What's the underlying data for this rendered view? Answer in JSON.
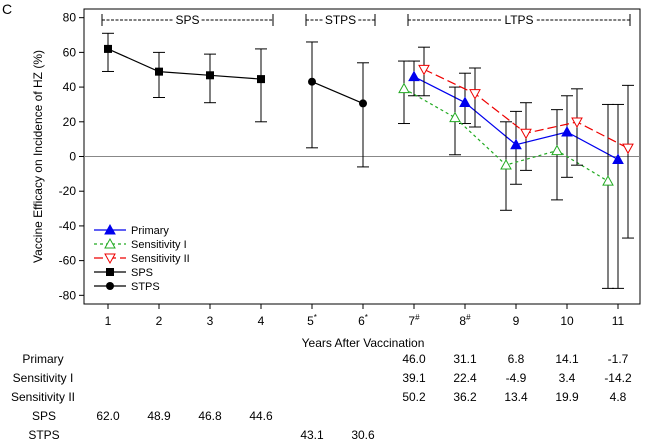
{
  "panel_label": "C",
  "chart_data": {
    "type": "line",
    "title": "",
    "xlabel": "Years After Vaccination",
    "ylabel": "Vaccine Efficacy on Incidence of HZ (%)",
    "ylim": [
      -85,
      85
    ],
    "yticks": [
      -80,
      -60,
      -40,
      -20,
      0,
      20,
      40,
      60,
      80
    ],
    "x_ticks": [
      {
        "label": "1"
      },
      {
        "label": "2"
      },
      {
        "label": "3"
      },
      {
        "label": "4"
      },
      {
        "label": "5",
        "sup": "*"
      },
      {
        "label": "6",
        "sup": "*"
      },
      {
        "label": "7",
        "sup": "#"
      },
      {
        "label": "8",
        "sup": "#"
      },
      {
        "label": "9"
      },
      {
        "label": "10"
      },
      {
        "label": "11"
      }
    ],
    "reference_line": 0,
    "periods": [
      {
        "label": "SPS",
        "from": 1,
        "to": 4
      },
      {
        "label": "STPS",
        "from": 5,
        "to": 6
      },
      {
        "label": "LTPS",
        "from": 7,
        "to": 11
      }
    ],
    "series": [
      {
        "name": "Primary",
        "color": "#0000ee",
        "dash": "solid",
        "marker": "triangle-up",
        "x": [
          7,
          8,
          9,
          10,
          11
        ],
        "values": [
          46.0,
          31.1,
          6.8,
          14.1,
          -1.7
        ],
        "ci_low": [
          35,
          19,
          -16,
          -12,
          -76
        ],
        "ci_high": [
          55,
          48,
          26,
          35,
          30
        ],
        "dx": 0
      },
      {
        "name": "Sensitivity I",
        "color": "#22aa22",
        "dash": "3,3",
        "marker": "triangle-up-open",
        "x": [
          7,
          8,
          9,
          10,
          11
        ],
        "values": [
          39.1,
          22.4,
          -4.9,
          3.4,
          -14.2
        ],
        "ci_low": [
          19,
          1,
          -31,
          -25,
          -76
        ],
        "ci_high": [
          55,
          40,
          20,
          27,
          30
        ],
        "dx": -10
      },
      {
        "name": "Sensitivity II",
        "color": "#ee0000",
        "dash": "9,4",
        "marker": "triangle-down-open",
        "x": [
          7,
          8,
          9,
          10,
          11
        ],
        "values": [
          50.2,
          36.2,
          13.4,
          19.9,
          4.8
        ],
        "ci_low": [
          35,
          17,
          -8,
          -5,
          -47
        ],
        "ci_high": [
          63,
          51,
          31,
          39,
          41
        ],
        "dx": 10
      },
      {
        "name": "SPS",
        "color": "#000000",
        "dash": "solid",
        "marker": "square",
        "x": [
          1,
          2,
          3,
          4
        ],
        "values": [
          62.0,
          48.9,
          46.8,
          44.6
        ],
        "ci_low": [
          49,
          34,
          31,
          20
        ],
        "ci_high": [
          71,
          60,
          59,
          62
        ],
        "dx": 0
      },
      {
        "name": "STPS",
        "color": "#000000",
        "dash": "solid",
        "marker": "circle",
        "x": [
          5,
          6
        ],
        "values": [
          43.1,
          30.6
        ],
        "ci_low": [
          5,
          -6
        ],
        "ci_high": [
          66,
          54
        ],
        "dx": 0
      }
    ],
    "table": {
      "rows": [
        {
          "label": "Primary",
          "x": [
            7,
            8,
            9,
            10,
            11
          ],
          "values": [
            "46.0",
            "31.1",
            "6.8",
            "14.1",
            "-1.7"
          ]
        },
        {
          "label": "Sensitivity I",
          "x": [
            7,
            8,
            9,
            10,
            11
          ],
          "values": [
            "39.1",
            "22.4",
            "-4.9",
            "3.4",
            "-14.2"
          ]
        },
        {
          "label": "Sensitivity II",
          "x": [
            7,
            8,
            9,
            10,
            11
          ],
          "values": [
            "50.2",
            "36.2",
            "13.4",
            "19.9",
            "4.8"
          ]
        },
        {
          "label": "SPS",
          "x": [
            1,
            2,
            3,
            4
          ],
          "values": [
            "62.0",
            "48.9",
            "46.8",
            "44.6"
          ]
        },
        {
          "label": "STPS",
          "x": [
            5,
            6
          ],
          "values": [
            "43.1",
            "30.6"
          ]
        }
      ]
    }
  }
}
